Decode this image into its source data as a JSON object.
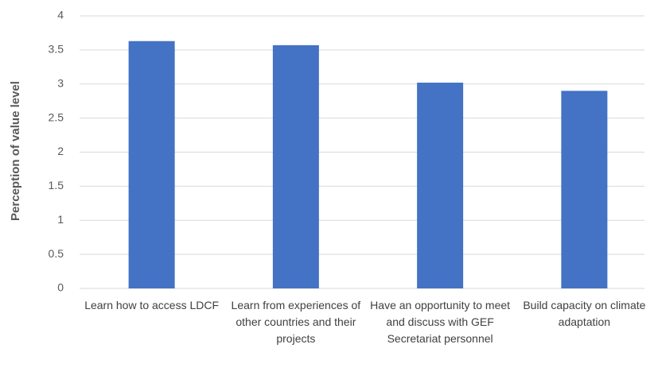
{
  "chart_data": {
    "type": "bar",
    "y_label": "Perception of value level",
    "categories": [
      "Learn how to access LDCF",
      "Learn from experiences of other countries and their projects",
      "Have an opportunity to meet and discuss with GEF Secretariat personnel",
      "Build capacity on climate adaptation"
    ],
    "values": [
      3.63,
      3.57,
      3.02,
      2.9
    ],
    "color": "#4472c4",
    "ylim": [
      0,
      4
    ],
    "yticks": [
      0,
      0.5,
      1,
      1.5,
      2,
      2.5,
      3,
      3.5,
      4
    ],
    "grid": true
  }
}
